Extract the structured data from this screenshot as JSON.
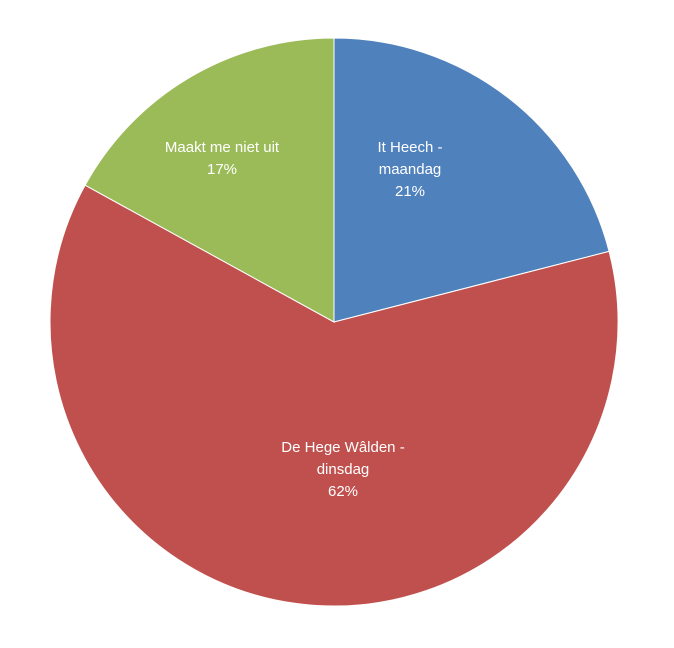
{
  "chart_data": {
    "type": "pie",
    "categories": [
      "It Heech - maandag",
      "De Hege Wâlden - dinsdag",
      "Maakt me niet uit"
    ],
    "values": [
      21,
      62,
      17
    ],
    "value_labels": [
      "21%",
      "62%",
      "17%"
    ],
    "colors": [
      "#4f81bd",
      "#c0504d",
      "#9bbb59"
    ]
  }
}
